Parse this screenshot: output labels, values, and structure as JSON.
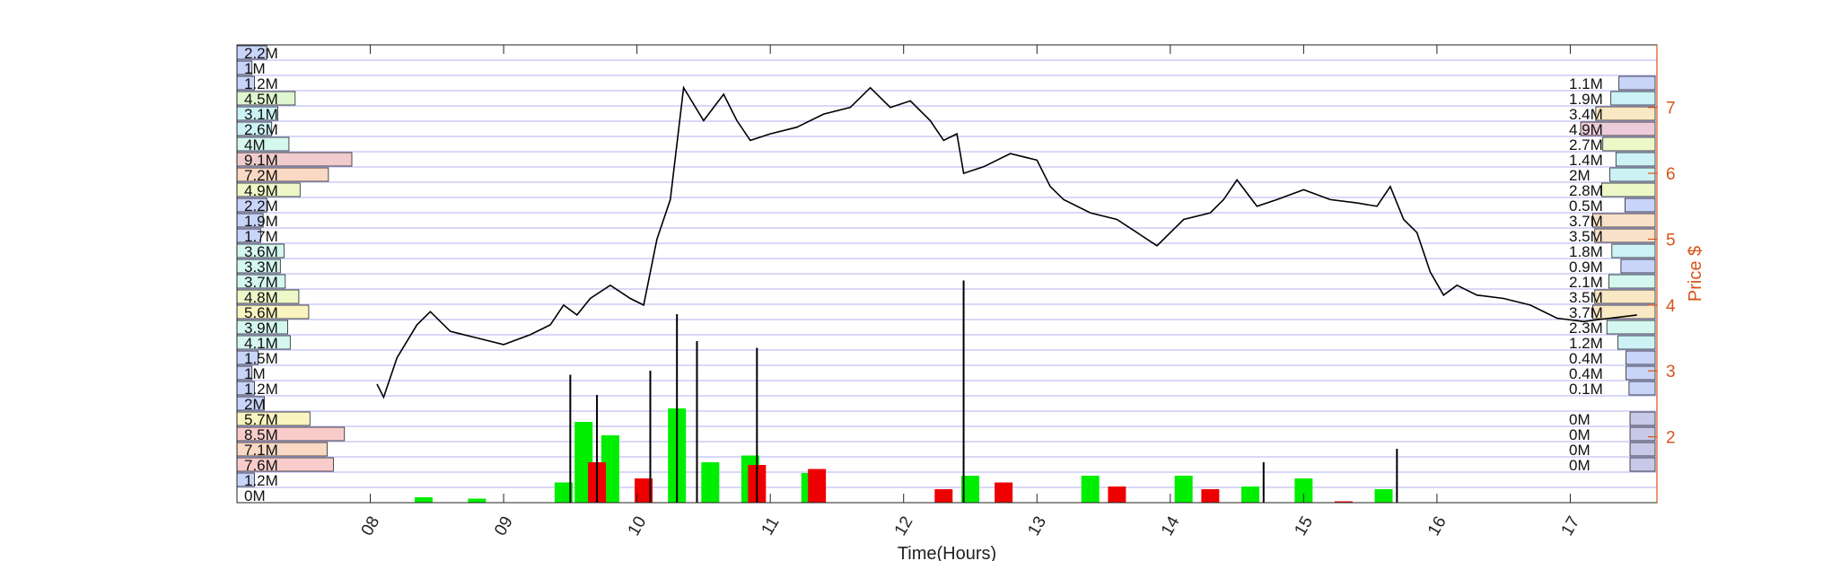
{
  "chart_data": {
    "type": "line",
    "xlabel": "Time(Hours)",
    "ylabel": "Price $",
    "x_ticks": [
      "08",
      "09",
      "10",
      "11",
      "12",
      "13",
      "14",
      "15",
      "16",
      "17"
    ],
    "y_ticks": [
      2,
      3,
      4,
      5,
      6,
      7
    ],
    "xlim": [
      7.0,
      17.65
    ],
    "ylim": [
      1.0,
      7.95
    ],
    "grid": "horizontal",
    "colors": {
      "price_line": "#000000",
      "right_axis": "#d95319",
      "grid": "#9999ee",
      "volume_up": "#00ee00",
      "volume_down": "#ee0000",
      "volume_spike": "#000000"
    },
    "price_series": {
      "name": "Price",
      "points": [
        [
          8.05,
          2.8
        ],
        [
          8.1,
          2.6
        ],
        [
          8.2,
          3.2
        ],
        [
          8.35,
          3.7
        ],
        [
          8.45,
          3.9
        ],
        [
          8.6,
          3.6
        ],
        [
          8.8,
          3.5
        ],
        [
          9.0,
          3.4
        ],
        [
          9.2,
          3.55
        ],
        [
          9.35,
          3.7
        ],
        [
          9.45,
          4.0
        ],
        [
          9.55,
          3.85
        ],
        [
          9.65,
          4.1
        ],
        [
          9.8,
          4.3
        ],
        [
          9.95,
          4.1
        ],
        [
          10.05,
          4.0
        ],
        [
          10.15,
          5.0
        ],
        [
          10.25,
          5.6
        ],
        [
          10.35,
          7.3
        ],
        [
          10.5,
          6.8
        ],
        [
          10.65,
          7.2
        ],
        [
          10.75,
          6.8
        ],
        [
          10.85,
          6.5
        ],
        [
          11.0,
          6.6
        ],
        [
          11.2,
          6.7
        ],
        [
          11.4,
          6.9
        ],
        [
          11.6,
          7.0
        ],
        [
          11.75,
          7.3
        ],
        [
          11.9,
          7.0
        ],
        [
          12.05,
          7.1
        ],
        [
          12.2,
          6.8
        ],
        [
          12.3,
          6.5
        ],
        [
          12.4,
          6.6
        ],
        [
          12.45,
          6.0
        ],
        [
          12.6,
          6.1
        ],
        [
          12.8,
          6.3
        ],
        [
          13.0,
          6.2
        ],
        [
          13.1,
          5.8
        ],
        [
          13.2,
          5.6
        ],
        [
          13.4,
          5.4
        ],
        [
          13.6,
          5.3
        ],
        [
          13.75,
          5.1
        ],
        [
          13.9,
          4.9
        ],
        [
          14.1,
          5.3
        ],
        [
          14.3,
          5.4
        ],
        [
          14.4,
          5.6
        ],
        [
          14.5,
          5.9
        ],
        [
          14.65,
          5.5
        ],
        [
          14.8,
          5.6
        ],
        [
          15.0,
          5.75
        ],
        [
          15.2,
          5.6
        ],
        [
          15.4,
          5.55
        ],
        [
          15.55,
          5.5
        ],
        [
          15.65,
          5.8
        ],
        [
          15.75,
          5.3
        ],
        [
          15.85,
          5.1
        ],
        [
          15.95,
          4.5
        ],
        [
          16.05,
          4.15
        ],
        [
          16.15,
          4.3
        ],
        [
          16.3,
          4.15
        ],
        [
          16.5,
          4.1
        ],
        [
          16.7,
          4.0
        ],
        [
          16.9,
          3.8
        ],
        [
          17.1,
          3.75
        ],
        [
          17.3,
          3.8
        ],
        [
          17.5,
          3.85
        ]
      ]
    },
    "volume_bars": {
      "comment_units": "relative volume 0-1",
      "green": [
        [
          8.4,
          0.04
        ],
        [
          8.8,
          0.03
        ],
        [
          9.45,
          0.15
        ],
        [
          9.6,
          0.6
        ],
        [
          9.8,
          0.5
        ],
        [
          10.3,
          0.7
        ],
        [
          10.55,
          0.3
        ],
        [
          10.85,
          0.35
        ],
        [
          11.3,
          0.22
        ],
        [
          12.5,
          0.2
        ],
        [
          13.4,
          0.2
        ],
        [
          14.1,
          0.2
        ],
        [
          14.6,
          0.12
        ],
        [
          15.0,
          0.18
        ],
        [
          15.6,
          0.1
        ]
      ],
      "red": [
        [
          9.7,
          0.3
        ],
        [
          10.05,
          0.18
        ],
        [
          10.9,
          0.28
        ],
        [
          11.35,
          0.25
        ],
        [
          12.3,
          0.1
        ],
        [
          12.75,
          0.15
        ],
        [
          13.6,
          0.12
        ],
        [
          14.3,
          0.1
        ],
        [
          15.3,
          0.01
        ]
      ],
      "spikes": [
        [
          9.5,
          0.95
        ],
        [
          9.7,
          0.8
        ],
        [
          10.1,
          0.98
        ],
        [
          10.3,
          1.4
        ],
        [
          10.45,
          1.2
        ],
        [
          10.9,
          1.15
        ],
        [
          12.45,
          1.65
        ],
        [
          14.7,
          0.3
        ],
        [
          15.7,
          0.4
        ]
      ]
    },
    "left_profile": {
      "labels": [
        "2.2M",
        "1M",
        "1.2M",
        "4.5M",
        "3.1M",
        "2.6M",
        "4M",
        "9.1M",
        "7.2M",
        "4.9M",
        "2.2M",
        "1.9M",
        "1.7M",
        "3.6M",
        "3.3M",
        "3.7M",
        "4.8M",
        "5.6M",
        "3.9M",
        "4.1M",
        "1.5M",
        "1M",
        "1.2M",
        "2M",
        "5.7M",
        "8.5M",
        "7.1M",
        "7.6M",
        "1.2M",
        "0M"
      ],
      "values": [
        2.2,
        1.0,
        1.2,
        4.5,
        3.1,
        2.6,
        4.0,
        9.1,
        7.2,
        4.9,
        2.2,
        1.9,
        1.7,
        3.6,
        3.3,
        3.7,
        4.8,
        5.6,
        3.9,
        4.1,
        1.5,
        1.0,
        1.2,
        2.0,
        5.7,
        8.5,
        7.1,
        7.6,
        1.2,
        0
      ],
      "colors": [
        "#c8d4f8",
        "#c8d4f8",
        "#c8d4f8",
        "#dff7d0",
        "#ccf2f5",
        "#ccf2f5",
        "#d4f7ef",
        "#f0cccc",
        "#f9d8c4",
        "#eef7c8",
        "#c8d4f8",
        "#c8d4f8",
        "#c8d4f8",
        "#d4f7ef",
        "#d4f7ef",
        "#d4f7ef",
        "#eef7c8",
        "#f9f4c0",
        "#d4f7ef",
        "#d4f7ef",
        "#c8d4f8",
        "#c8d4f8",
        "#c8d4f8",
        "#c8d4f8",
        "#f9f4c0",
        "#f9cccc",
        "#f9d8c4",
        "#f9cccc",
        "#c8d4f8",
        "#ffffff"
      ]
    },
    "right_profile": {
      "labels": [
        "1.1M",
        "1.9M",
        "3.4M",
        "4.9M",
        "2.7M",
        "1.4M",
        "2M",
        "2.8M",
        "0.5M",
        "3.7M",
        "3.5M",
        "1.8M",
        "0.9M",
        "2.1M",
        "3.5M",
        "3.7M",
        "2.3M",
        "1.2M",
        "0.4M",
        "0.4M",
        "0.1M",
        "0M",
        "0M",
        "0M",
        "0M"
      ],
      "values": [
        1.1,
        1.9,
        3.4,
        4.9,
        2.7,
        1.4,
        2.0,
        2.8,
        0.5,
        3.7,
        3.5,
        1.8,
        0.9,
        2.1,
        3.5,
        3.7,
        2.3,
        1.2,
        0.4,
        0.4,
        0.1,
        0,
        0,
        0,
        0
      ],
      "colors": [
        "#c8d4f8",
        "#ccf2f5",
        "#f9e8c4",
        "#ecccd8",
        "#eef7c8",
        "#ccf2f5",
        "#ccf2f5",
        "#eef7c8",
        "#c8d4f8",
        "#f9e0c8",
        "#f9e0c8",
        "#ccf2f5",
        "#c8d4f8",
        "#d4f7ef",
        "#f9e8c4",
        "#f9e8c4",
        "#d4f7ef",
        "#ccf2f5",
        "#c8d4f8",
        "#c8d4f8",
        "#c8d4f8",
        "#c8c8e8",
        "#c8c8e8",
        "#c8c8e8",
        "#c8c8e8"
      ]
    }
  }
}
